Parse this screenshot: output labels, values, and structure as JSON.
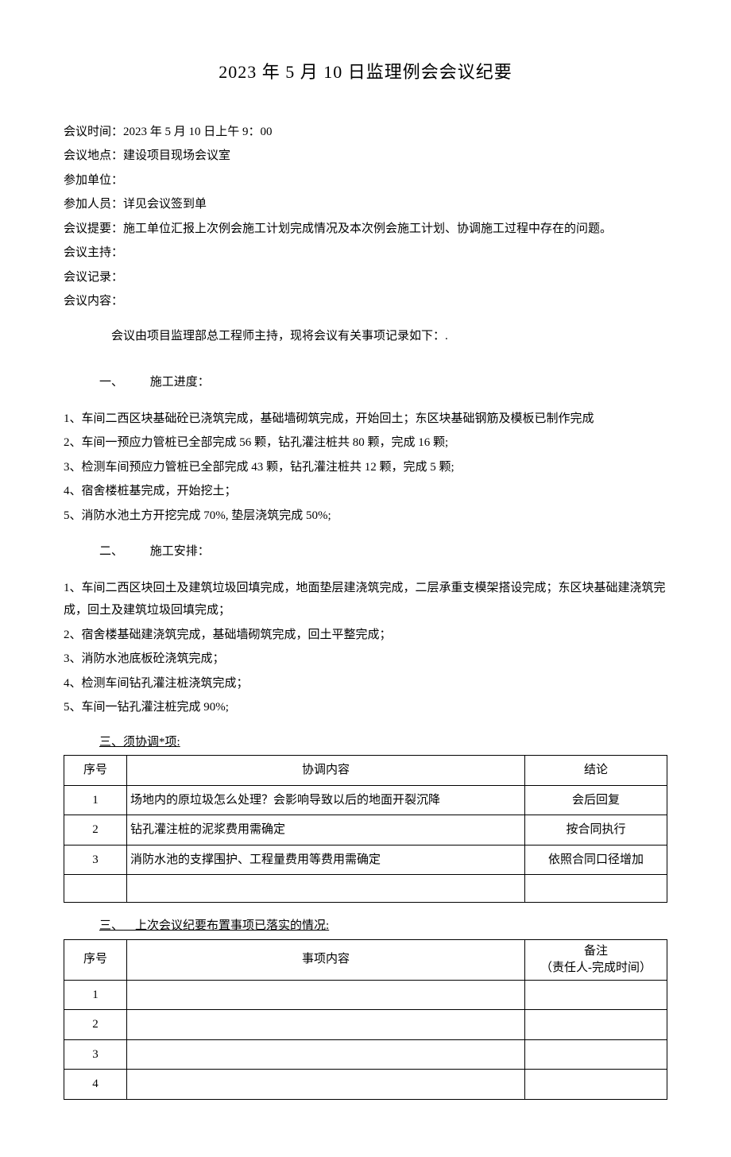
{
  "title": "2023 年 5 月 10 日监理例会会议纪要",
  "meta": {
    "time_label": "会议时间：",
    "time_value": "2023 年 5 月 10 日上午 9：00",
    "place_label": "会议地点：",
    "place_value": "建设项目现场会议室",
    "units_label": "参加单位：",
    "units_value": "",
    "people_label": "参加人员：",
    "people_value": "详见会议签到单",
    "abstract_label": "会议提要：",
    "abstract_value": "施工单位汇报上次例会施工计划完成情况及本次例会施工计划、协调施工过程中存在的问题。",
    "host_label": "会议主持：",
    "host_value": "",
    "recorder_label": "会议记录：",
    "recorder_value": "",
    "content_label": "会议内容："
  },
  "intro": "会议由项目监理部总工程师主持，现将会议有关事项记录如下：.",
  "section1": {
    "num": "一、",
    "title": "施工进度：",
    "items": [
      "1、车间二西区块基础砼已浇筑完成，基础墙砌筑完成，开始回土；东区块基础钢筋及模板已制作完成",
      "2、车间一预应力管桩已全部完成 56 颗，钻孔灌注桩共 80 颗，完成 16 颗;",
      "3、检测车间预应力管桩已全部完成 43 颗，钻孔灌注桩共 12 颗，完成 5 颗;",
      "4、宿舍楼桩基完成，开始挖土；",
      "5、消防水池土方开挖完成 70%, 垫层浇筑完成 50%;"
    ]
  },
  "section2": {
    "num": "二、",
    "title": "施工安排：",
    "items": [
      "1、车间二西区块回土及建筑垃圾回填完成，地面垫层建浇筑完成，二层承重支模架搭设完成；东区块基础建浇筑完成，回土及建筑垃圾回填完成；",
      "2、宿舍楼基础建浇筑完成，基础墙砌筑完成，回土平整完成；",
      "3、消防水池底板砼浇筑完成；",
      "4、检测车间钻孔灌注桩浇筑完成；",
      "5、车间一钻孔灌注桩完成 90%;"
    ]
  },
  "section_coord": {
    "heading": "三、须协调*项:",
    "cols": [
      "序号",
      "协调内容",
      "结论"
    ],
    "rows": [
      [
        "1",
        "场地内的原垃圾怎么处理？会影响导致以后的地面开裂沉降",
        "会后回复"
      ],
      [
        "2",
        "钻孔灌注桩的泥浆费用需确定",
        "按合同执行"
      ],
      [
        "3",
        "消防水池的支撑围护、工程量费用等费用需确定",
        "依照合同口径增加"
      ],
      [
        "",
        "",
        ""
      ]
    ]
  },
  "section_prev": {
    "num": "三、",
    "title": "上次会议纪要布置事项已落实的情况:",
    "col_num": "序号",
    "col_content": "事项内容",
    "col_note_a": "备注",
    "col_note_b": "（责任人-完成时间）",
    "rows": [
      [
        "1",
        "",
        ""
      ],
      [
        "2",
        "",
        ""
      ],
      [
        "3",
        "",
        ""
      ],
      [
        "4",
        "",
        ""
      ]
    ]
  }
}
